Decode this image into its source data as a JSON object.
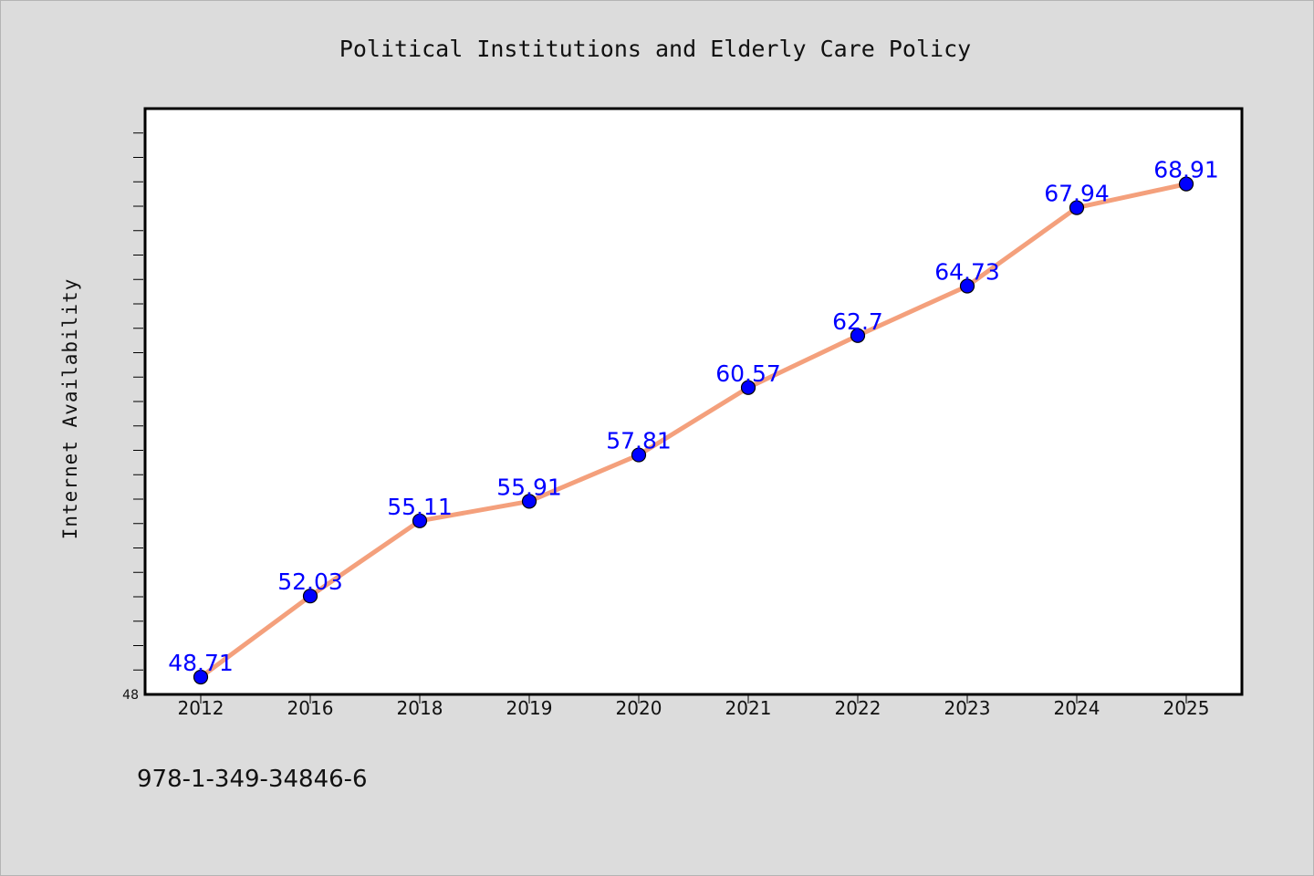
{
  "chart_data": {
    "type": "line",
    "title": "Political Institutions and Elderly Care Policy",
    "xlabel": "",
    "ylabel": "Internet Availability",
    "categories": [
      "2012",
      "2016",
      "2018",
      "2019",
      "2020",
      "2021",
      "2022",
      "2023",
      "2024",
      "2025"
    ],
    "series": [
      {
        "values": [
          48.71,
          52.03,
          55.11,
          55.91,
          57.81,
          60.57,
          62.7,
          64.73,
          67.94,
          68.91
        ],
        "data_labels": [
          "48.71",
          "52.03",
          "55.11",
          "55.91",
          "57.81",
          "60.57",
          "62.7",
          "64.73",
          "67.94",
          "68.91"
        ]
      }
    ],
    "ylim": [
      48,
      72
    ],
    "yticks_labeled": [
      "48"
    ],
    "grid": false,
    "legend": "none",
    "colors": {
      "line": "#f4a07c",
      "marker": "#0000ff",
      "marker_edge": "#000000",
      "data_label": "#0000ff",
      "plot_background": "#ffffff",
      "figure_background": "#dcdcdc"
    }
  },
  "footer": {
    "isbn": "978-1-349-34846-6"
  }
}
